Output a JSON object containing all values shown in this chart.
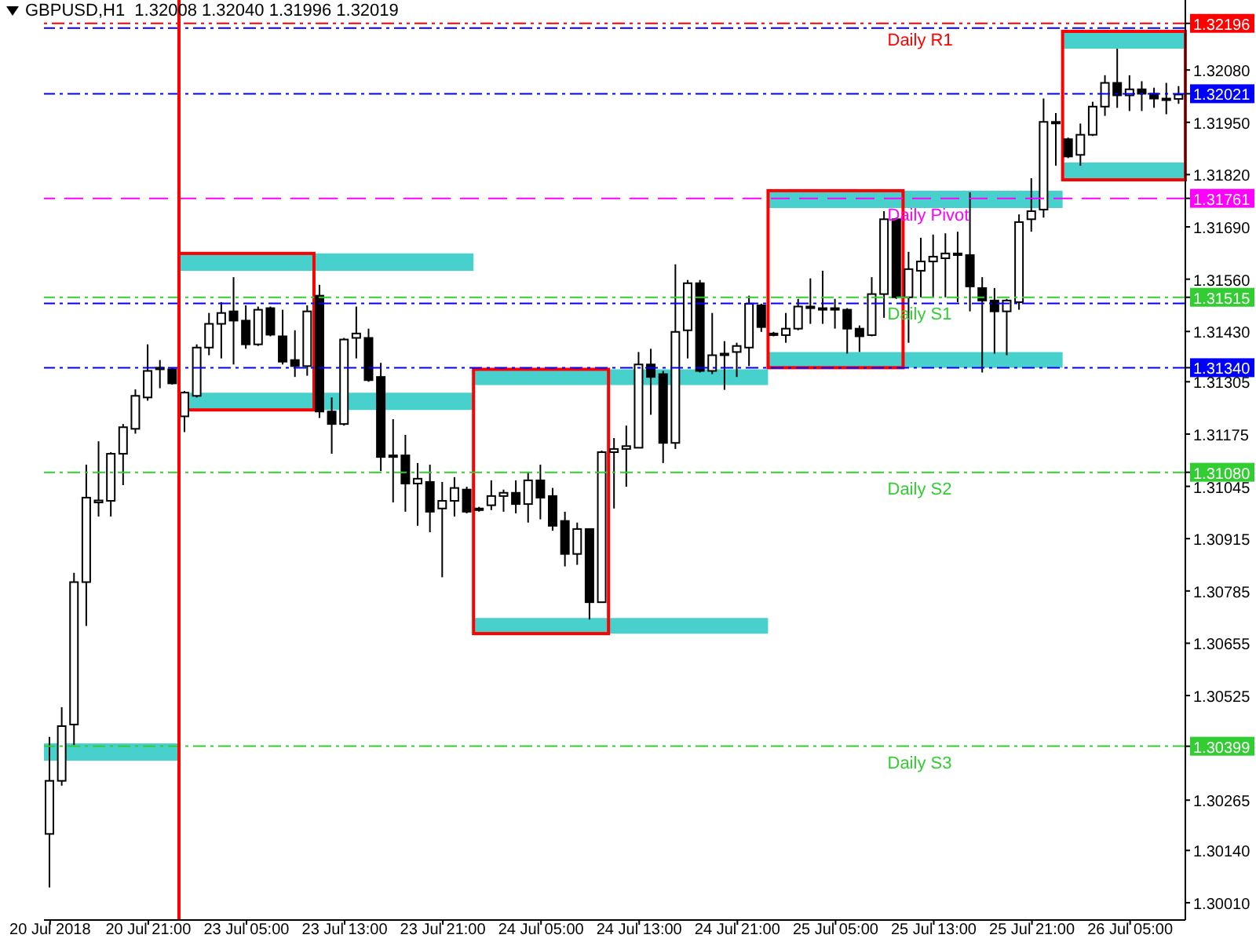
{
  "chart_data": {
    "type": "candlestick",
    "title": "GBPUSD,H1  1.32008 1.32040 1.31996 1.32019",
    "categories": [
      "20 Jul 2018",
      null,
      null,
      null,
      null,
      null,
      null,
      null,
      "20 Jul 21:00",
      null,
      null,
      null,
      null,
      null,
      null,
      null,
      "23 Jul 05:00",
      null,
      null,
      null,
      null,
      null,
      null,
      null,
      "23 Jul 13:00",
      null,
      null,
      null,
      null,
      null,
      null,
      null,
      "23 Jul 21:00",
      null,
      null,
      null,
      null,
      null,
      null,
      null,
      "24 Jul 05:00",
      null,
      null,
      null,
      null,
      null,
      null,
      null,
      "24 Jul 13:00",
      null,
      null,
      null,
      null,
      null,
      null,
      null,
      "24 Jul 21:00",
      null,
      null,
      null,
      null,
      null,
      null,
      null,
      "25 Jul 05:00",
      null,
      null,
      null,
      null,
      null,
      null,
      null,
      "25 Jul 13:00",
      null,
      null,
      null,
      null,
      null,
      null,
      null,
      "25 Jul 21:00",
      null,
      null,
      null,
      null,
      null,
      null,
      null,
      "26 Jul 05:00",
      null,
      null,
      null,
      null
    ],
    "ohlc": [
      [
        1.30181,
        1.30422,
        1.30048,
        1.30313
      ],
      [
        1.30313,
        1.30496,
        1.30301,
        1.30449
      ],
      [
        1.30453,
        1.3083,
        1.30402,
        1.30807
      ],
      [
        1.30807,
        1.31099,
        1.30698,
        1.31017
      ],
      [
        1.31005,
        1.31157,
        1.3097,
        1.3101
      ],
      [
        1.31009,
        1.3113,
        1.3097,
        1.31126
      ],
      [
        1.31126,
        1.312,
        1.31048,
        1.31192
      ],
      [
        1.31188,
        1.31286,
        1.31176,
        1.3127
      ],
      [
        1.31266,
        1.31398,
        1.31258,
        1.31332
      ],
      [
        1.31336,
        1.31359,
        1.31289,
        1.3134
      ],
      [
        1.31336,
        1.3134,
        1.31298,
        1.31301
      ],
      [
        1.31219,
        1.31282,
        1.3118,
        1.31278
      ],
      [
        1.3127,
        1.31398,
        1.31266,
        1.3139
      ],
      [
        1.3139,
        1.31476,
        1.31371,
        1.31449
      ],
      [
        1.31449,
        1.31503,
        1.31363,
        1.31476
      ],
      [
        1.3148,
        1.31565,
        1.31348,
        1.31457
      ],
      [
        1.31457,
        1.31495,
        1.31387,
        1.31398
      ],
      [
        1.31398,
        1.31492,
        1.31394,
        1.31484
      ],
      [
        1.31488,
        1.31492,
        1.31418,
        1.31422
      ],
      [
        1.31418,
        1.31484,
        1.31348,
        1.31355
      ],
      [
        1.31359,
        1.31433,
        1.31317,
        1.31344
      ],
      [
        1.31344,
        1.31495,
        1.3132,
        1.3148
      ],
      [
        1.31519,
        1.31546,
        1.31215,
        1.31231
      ],
      [
        1.31231,
        1.31266,
        1.31126,
        1.312
      ],
      [
        1.312,
        1.31414,
        1.31196,
        1.3141
      ],
      [
        1.31414,
        1.31492,
        1.31363,
        1.31425
      ],
      [
        1.31414,
        1.31437,
        1.31305,
        1.31309
      ],
      [
        1.31317,
        1.31352,
        1.31083,
        1.31118
      ],
      [
        1.31122,
        1.31212,
        1.31005,
        1.31118
      ],
      [
        1.31122,
        1.31173,
        1.30982,
        1.31052
      ],
      [
        1.31052,
        1.31103,
        1.30947,
        1.31064
      ],
      [
        1.31056,
        1.31099,
        1.30931,
        1.30982
      ],
      [
        1.3099,
        1.31056,
        1.30819,
        1.31009
      ],
      [
        1.31009,
        1.31068,
        1.3097,
        1.31041
      ],
      [
        1.31037,
        1.31044,
        1.30978,
        1.30982
      ],
      [
        1.3099,
        1.30994,
        1.30982,
        1.30986
      ],
      [
        1.30998,
        1.3106,
        1.30986,
        1.31021
      ],
      [
        1.31021,
        1.31037,
        1.30982,
        1.31029
      ],
      [
        1.31029,
        1.3106,
        1.30978,
        1.31001
      ],
      [
        1.31001,
        1.31079,
        1.30955,
        1.3106
      ],
      [
        1.3106,
        1.31099,
        1.30963,
        1.31017
      ],
      [
        1.31021,
        1.31041,
        1.30935,
        1.30947
      ],
      [
        1.30959,
        1.30982,
        1.30846,
        1.30877
      ],
      [
        1.30877,
        1.30955,
        1.3085,
        1.30939
      ],
      [
        1.30939,
        1.30939,
        1.30714,
        1.30757
      ],
      [
        1.30757,
        1.31134,
        1.30757,
        1.3113
      ],
      [
        1.3113,
        1.31165,
        1.3099,
        1.31138
      ],
      [
        1.31138,
        1.31196,
        1.31044,
        1.31145
      ],
      [
        1.31141,
        1.31379,
        1.31141,
        1.31348
      ],
      [
        1.31348,
        1.31387,
        1.31223,
        1.31317
      ],
      [
        1.31324,
        1.31332,
        1.31103,
        1.31153
      ],
      [
        1.31153,
        1.31597,
        1.31138,
        1.31429
      ],
      [
        1.31433,
        1.31558,
        1.31363,
        1.3155
      ],
      [
        1.3155,
        1.31558,
        1.31328,
        1.31332
      ],
      [
        1.31332,
        1.31476,
        1.31324,
        1.31371
      ],
      [
        1.31371,
        1.31406,
        1.31285,
        1.31375
      ],
      [
        1.31379,
        1.31402,
        1.31317,
        1.31394
      ],
      [
        1.3139,
        1.31519,
        1.31344,
        1.31499
      ],
      [
        1.31495,
        1.31499,
        1.31429,
        1.31441
      ],
      [
        1.31425,
        1.31429,
        1.31418,
        1.31421
      ],
      [
        1.31421,
        1.31476,
        1.31402,
        1.31437
      ],
      [
        1.31437,
        1.31511,
        1.31433,
        1.31492
      ],
      [
        1.31488,
        1.31562,
        1.31449,
        1.31492
      ],
      [
        1.31488,
        1.31581,
        1.31449,
        1.31484
      ],
      [
        1.31488,
        1.31511,
        1.31437,
        1.31484
      ],
      [
        1.31484,
        1.31488,
        1.31375,
        1.31437
      ],
      [
        1.31437,
        1.31445,
        1.31379,
        1.31418
      ],
      [
        1.31421,
        1.31565,
        1.31418,
        1.31523
      ],
      [
        1.31523,
        1.31729,
        1.31464,
        1.31709
      ],
      [
        1.31709,
        1.31713,
        1.31511,
        1.31515
      ],
      [
        1.31515,
        1.31628,
        1.31402,
        1.31585
      ],
      [
        1.31581,
        1.31663,
        1.31515,
        1.31604
      ],
      [
        1.31604,
        1.31671,
        1.31515,
        1.31616
      ],
      [
        1.31612,
        1.31674,
        1.31515,
        1.31624
      ],
      [
        1.3162,
        1.31678,
        1.31503,
        1.31624
      ],
      [
        1.3162,
        1.31776,
        1.3148,
        1.31542
      ],
      [
        1.31538,
        1.31565,
        1.31328,
        1.31507
      ],
      [
        1.31507,
        1.31538,
        1.31375,
        1.3148
      ],
      [
        1.3148,
        1.31511,
        1.31371,
        1.31507
      ],
      [
        1.31503,
        1.31721,
        1.31484,
        1.31702
      ],
      [
        1.31709,
        1.31811,
        1.31678,
        1.31729
      ],
      [
        1.31733,
        1.32009,
        1.31713,
        1.31951
      ],
      [
        1.31951,
        1.31973,
        1.31842,
        1.31951
      ],
      [
        1.31908,
        1.31912,
        1.31861,
        1.31865
      ],
      [
        1.31869,
        1.31947,
        1.31842,
        1.31919
      ],
      [
        1.31919,
        1.32001,
        1.31916,
        1.31989
      ],
      [
        1.31989,
        1.32067,
        1.31966,
        1.32048
      ],
      [
        1.32048,
        1.32133,
        1.31986,
        1.32017
      ],
      [
        1.32017,
        1.32067,
        1.31978,
        1.32032
      ],
      [
        1.32032,
        1.32052,
        1.31978,
        1.32021
      ],
      [
        1.32021,
        1.32036,
        1.31986,
        1.32009
      ],
      [
        1.32009,
        1.32048,
        1.3197,
        1.32009
      ],
      [
        1.32008,
        1.3204,
        1.31996,
        1.32019
      ]
    ],
    "ylim": [
      1.29967,
      1.32254
    ],
    "yticks": [
      {
        "value": 1.3001,
        "label": "1.30010"
      },
      {
        "value": 1.3014,
        "label": "1.30140"
      },
      1.30265,
      1.30399,
      1.30525,
      1.30655,
      1.30785,
      1.30915,
      1.31045,
      {
        "value": 1.3108,
        "label": "1.31080"
      },
      1.31175,
      1.31305,
      {
        "value": 1.3134,
        "label": "1.31340"
      },
      {
        "value": 1.3143,
        "label": "1.31430"
      },
      1.31515,
      {
        "value": 1.3156,
        "label": "1.31560"
      },
      {
        "value": 1.3169,
        "label": "1.31690"
      },
      1.31761,
      {
        "value": 1.3182,
        "label": "1.31820"
      },
      {
        "value": 1.3195,
        "label": "1.31950"
      },
      1.32021,
      {
        "value": 1.3208,
        "label": "1.32080"
      },
      1.32196
    ],
    "ref_lines": [
      {
        "axis": "y",
        "value": 1.32184,
        "color": "#0000ff",
        "line_style": "dashdot"
      },
      {
        "axis": "y",
        "value": 1.315,
        "color": "#0000ff",
        "line_style": "dashdot"
      },
      {
        "axis": "y",
        "value": 1.32196,
        "label": "Daily R1",
        "color": "#ff0000",
        "line_style": "dashdotdot"
      },
      {
        "axis": "y",
        "value": 1.32021,
        "color": "#0000ff",
        "line_style": "dashdot"
      },
      {
        "axis": "y",
        "value": 1.31761,
        "label": "Daily Pivot",
        "color": "#ff00ff",
        "line_style": "dashed"
      },
      {
        "axis": "y",
        "value": 1.31515,
        "label": "Daily S1",
        "color": "#32cd32",
        "line_style": "dashdot"
      },
      {
        "axis": "y",
        "value": 1.3134,
        "color": "#0000ff",
        "line_style": "dashdot"
      },
      {
        "axis": "y",
        "value": 1.3108,
        "label": "Daily S2",
        "color": "#32cd32",
        "line_style": "dashdot"
      },
      {
        "axis": "y",
        "value": 1.30399,
        "label": "Daily S3",
        "color": "#32cd32",
        "line_style": "dashdot"
      }
    ],
    "bands": [
      {
        "axis": "y",
        "from": 1.30363,
        "to": 1.30406,
        "color": "#48d1cc"
      },
      {
        "axis": "y",
        "from": 1.31581,
        "to": 1.31624,
        "color": "#48d1cc"
      },
      {
        "axis": "y",
        "from": 1.31235,
        "to": 1.31278,
        "color": "#48d1cc"
      },
      {
        "axis": "y",
        "from": 1.31297,
        "to": 1.31336,
        "color": "#48d1cc"
      },
      {
        "axis": "y",
        "from": 1.30679,
        "to": 1.30718,
        "color": "#48d1cc"
      },
      {
        "axis": "y",
        "from": 1.31737,
        "to": 1.3178,
        "color": "#48d1cc"
      },
      {
        "axis": "y",
        "from": 1.3134,
        "to": 1.31379,
        "color": "#48d1cc"
      },
      {
        "axis": "y",
        "from": 1.32133,
        "to": 1.32176,
        "color": "#48d1cc"
      },
      {
        "axis": "y",
        "from": 1.31807,
        "to": 1.3185,
        "color": "#48d1cc"
      }
    ],
    "grid": false,
    "legend": false
  }
}
